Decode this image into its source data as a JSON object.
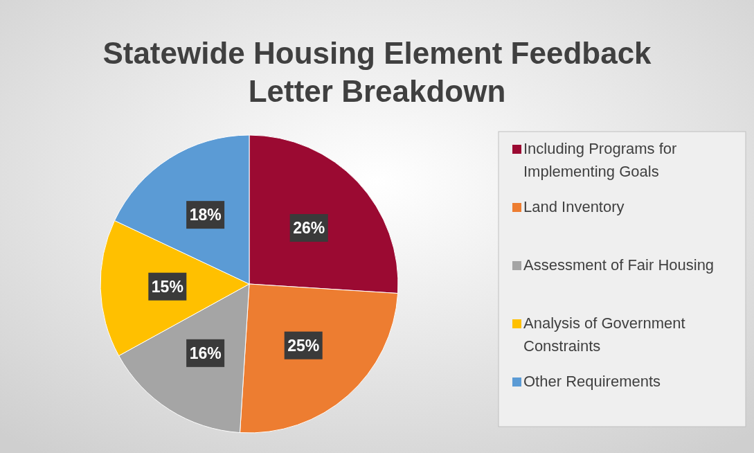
{
  "chart_data": {
    "type": "pie",
    "title": "Statewide Housing Element Feedback Letter Breakdown",
    "categories": [
      "Including Programs for Implementing Goals",
      "Land Inventory",
      "Assessment of Fair Housing",
      "Analysis of Government Constraints",
      "Other Requirements"
    ],
    "values": [
      26,
      25,
      16,
      15,
      18
    ],
    "colors": [
      "#9b0a32",
      "#ed7d31",
      "#a5a5a5",
      "#ffc000",
      "#5b9bd5"
    ],
    "value_labels": [
      "26%",
      "25%",
      "16%",
      "15%",
      "18%"
    ],
    "legend": "right"
  }
}
